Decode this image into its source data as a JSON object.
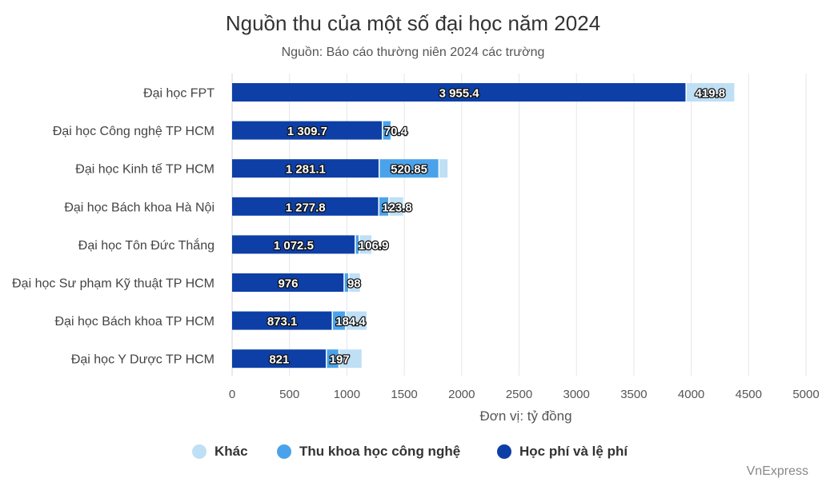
{
  "header": {
    "title": "Nguồn thu của một số đại học năm 2024",
    "subtitle": "Nguồn: Báo cáo thường niên 2024 các trường"
  },
  "credit": "VnExpress",
  "colors": {
    "hoc_phi": "#0d3fa6",
    "thu_khcn": "#4aa3ea",
    "khac": "#bfdff5",
    "grid": "#e3e6ea",
    "axis_text": "#555555"
  },
  "chart_data": {
    "type": "bar",
    "orientation": "horizontal",
    "stacked": true,
    "categories": [
      "Đại học FPT",
      "Đại học Công nghệ TP HCM",
      "Đại học Kinh tế TP HCM",
      "Đại học Bách khoa Hà Nội",
      "Đại học Tôn Đức Thắng",
      "Đại học Sư phạm Kỹ thuật TP HCM",
      "Đại học Bách khoa TP HCM",
      "Đại học Y Dược TP HCM"
    ],
    "series": [
      {
        "name": "Học phí và lệ phí",
        "color": "#0d3fa6",
        "values": [
          3955.4,
          1309.7,
          1281.1,
          1277.8,
          1072.5,
          976,
          873.1,
          821
        ],
        "labels": [
          "3 955.4",
          "1 309.7",
          "1 281.1",
          "1 277.8",
          "1 072.5",
          "976",
          "873.1",
          "821"
        ]
      },
      {
        "name": "Thu khoa học công nghệ",
        "color": "#4aa3ea",
        "values": [
          0,
          70.4,
          520.85,
          88,
          35,
          40,
          115,
          110
        ],
        "labels": [
          "",
          "70.4",
          "520.85",
          "",
          "",
          "",
          "",
          ""
        ]
      },
      {
        "name": "Khác",
        "color": "#bfdff5",
        "values": [
          419.8,
          0,
          75,
          123.8,
          106.9,
          98,
          184.4,
          197
        ],
        "labels": [
          "419.8",
          "",
          "",
          "123.8",
          "106.9",
          "98",
          "184.4",
          "197"
        ]
      }
    ],
    "xlabel": "Đơn vị: tỷ đồng",
    "xlim": [
      0,
      5000
    ],
    "xticks": [
      0,
      500,
      1000,
      1500,
      2000,
      2500,
      3000,
      3500,
      4000,
      4500,
      5000
    ],
    "grid": true,
    "legend_position": "bottom",
    "legend_order": [
      "Khác",
      "Thu khoa học công nghệ",
      "Học phí và lệ phí"
    ]
  }
}
